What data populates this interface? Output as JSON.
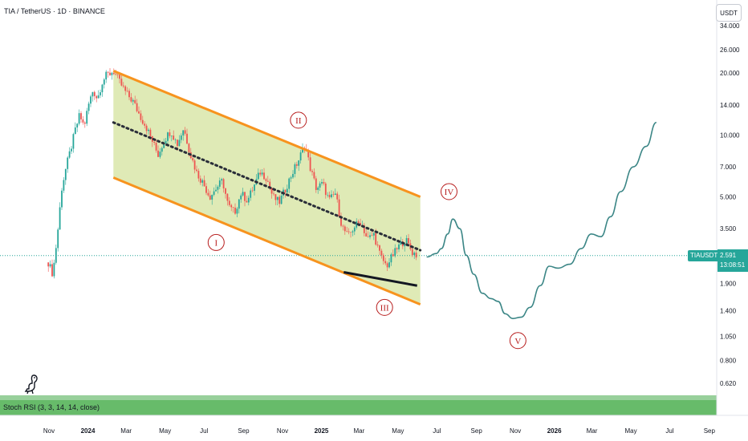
{
  "header": {
    "title": "TIA / TetherUS · 1D · BINANCE",
    "currency_button": "USDT"
  },
  "indicator": {
    "label": "Stoch RSI (3, 3, 14, 14, close)"
  },
  "price_tag": {
    "symbol": "TIAUSDT",
    "price": "2.591",
    "countdown": "13:08:51"
  },
  "colors": {
    "up_candle": "#26a69a",
    "down_candle": "#ef5350",
    "channel": "#f7931e",
    "channel_fill": "#c5d97a",
    "wave_label": "#b71c1c",
    "projection": "#3b8686",
    "indicator_band": "#4caf50"
  },
  "chart_data": {
    "type": "candlestick",
    "y_scale": "log",
    "ylim": [
      0.52,
      40
    ],
    "y_ticks": [
      "34.000",
      "26.000",
      "20.000",
      "14.000",
      "10.000",
      "7.000",
      "5.000",
      "3.500",
      "2.591",
      "1.900",
      "1.400",
      "1.050",
      "0.800",
      "0.620"
    ],
    "y_tick_values": [
      34,
      26,
      20,
      14,
      10,
      7,
      5,
      3.5,
      2.591,
      1.9,
      1.4,
      1.05,
      0.8,
      0.62
    ],
    "x_ticks": [
      "Nov",
      "2024",
      "Mar",
      "May",
      "Jul",
      "Sep",
      "Nov",
      "2025",
      "Mar",
      "May",
      "Jul",
      "Sep",
      "Nov",
      "2026",
      "Mar",
      "May",
      "Jul",
      "Sep"
    ],
    "x_tick_dates": [
      "2023-11-01",
      "2024-01-01",
      "2024-03-01",
      "2024-05-01",
      "2024-07-01",
      "2024-09-01",
      "2024-11-01",
      "2025-01-01",
      "2025-03-01",
      "2025-05-01",
      "2025-07-01",
      "2025-09-01",
      "2025-11-01",
      "2026-01-01",
      "2026-03-01",
      "2026-05-01",
      "2026-07-01",
      "2026-09-01"
    ],
    "price_path": [
      [
        "2023-10-31",
        2.4
      ],
      [
        "2023-11-07",
        2.1
      ],
      [
        "2023-11-14",
        3.2
      ],
      [
        "2023-11-21",
        5.5
      ],
      [
        "2023-11-28",
        7.0
      ],
      [
        "2023-12-05",
        8.5
      ],
      [
        "2023-12-12",
        10.5
      ],
      [
        "2023-12-19",
        12.5
      ],
      [
        "2023-12-26",
        11.0
      ],
      [
        "2024-01-02",
        14.0
      ],
      [
        "2024-01-09",
        16.5
      ],
      [
        "2024-01-16",
        15.0
      ],
      [
        "2024-01-23",
        18.0
      ],
      [
        "2024-01-30",
        19.5
      ],
      [
        "2024-02-06",
        20.0
      ],
      [
        "2024-02-10",
        20.5
      ],
      [
        "2024-02-20",
        18.0
      ],
      [
        "2024-03-01",
        16.0
      ],
      [
        "2024-03-12",
        14.5
      ],
      [
        "2024-03-22",
        12.5
      ],
      [
        "2024-04-01",
        11.0
      ],
      [
        "2024-04-10",
        9.5
      ],
      [
        "2024-04-20",
        8.0
      ],
      [
        "2024-04-30",
        9.5
      ],
      [
        "2024-05-10",
        10.5
      ],
      [
        "2024-05-20",
        9.0
      ],
      [
        "2024-05-30",
        10.8
      ],
      [
        "2024-06-10",
        8.0
      ],
      [
        "2024-06-20",
        6.5
      ],
      [
        "2024-06-30",
        5.8
      ],
      [
        "2024-07-10",
        5.0
      ],
      [
        "2024-07-20",
        5.5
      ],
      [
        "2024-07-30",
        6.0
      ],
      [
        "2024-08-08",
        4.5
      ],
      [
        "2024-08-18",
        4.2
      ],
      [
        "2024-08-28",
        5.2
      ],
      [
        "2024-09-07",
        4.8
      ],
      [
        "2024-09-17",
        5.6
      ],
      [
        "2024-09-27",
        6.6
      ],
      [
        "2024-10-07",
        6.2
      ],
      [
        "2024-10-17",
        5.0
      ],
      [
        "2024-10-27",
        4.7
      ],
      [
        "2024-11-06",
        5.5
      ],
      [
        "2024-11-16",
        6.5
      ],
      [
        "2024-11-26",
        7.5
      ],
      [
        "2024-12-06",
        9.0
      ],
      [
        "2024-12-14",
        7.0
      ],
      [
        "2024-12-24",
        5.5
      ],
      [
        "2025-01-03",
        5.8
      ],
      [
        "2025-01-13",
        4.8
      ],
      [
        "2025-01-23",
        5.2
      ],
      [
        "2025-02-02",
        3.6
      ],
      [
        "2025-02-12",
        3.2
      ],
      [
        "2025-02-22",
        3.6
      ],
      [
        "2025-03-04",
        3.8
      ],
      [
        "2025-03-14",
        3.1
      ],
      [
        "2025-03-24",
        3.3
      ],
      [
        "2025-04-03",
        2.6
      ],
      [
        "2025-04-13",
        2.3
      ],
      [
        "2025-04-23",
        2.6
      ],
      [
        "2025-05-03",
        2.9
      ],
      [
        "2025-05-13",
        3.1
      ],
      [
        "2025-05-23",
        2.7
      ],
      [
        "2025-05-31",
        2.591
      ]
    ],
    "projection_path": [
      [
        "2025-06-15",
        2.55
      ],
      [
        "2025-06-30",
        2.65
      ],
      [
        "2025-07-08",
        2.8
      ],
      [
        "2025-07-18",
        3.3
      ],
      [
        "2025-07-26",
        3.9
      ],
      [
        "2025-08-06",
        3.5
      ],
      [
        "2025-08-16",
        2.6
      ],
      [
        "2025-08-28",
        2.1
      ],
      [
        "2025-09-10",
        1.7
      ],
      [
        "2025-09-24",
        1.6
      ],
      [
        "2025-10-05",
        1.55
      ],
      [
        "2025-10-16",
        1.35
      ],
      [
        "2025-10-28",
        1.28
      ],
      [
        "2025-11-10",
        1.3
      ],
      [
        "2025-11-24",
        1.45
      ],
      [
        "2025-12-10",
        1.85
      ],
      [
        "2025-12-24",
        2.3
      ],
      [
        "2026-01-07",
        2.25
      ],
      [
        "2026-01-25",
        2.35
      ],
      [
        "2026-02-12",
        2.8
      ],
      [
        "2026-02-28",
        3.3
      ],
      [
        "2026-03-15",
        3.2
      ],
      [
        "2026-03-30",
        4.0
      ],
      [
        "2026-04-15",
        5.3
      ],
      [
        "2026-05-05",
        7.0
      ],
      [
        "2026-05-25",
        8.8
      ],
      [
        "2026-06-10",
        11.5
      ]
    ],
    "channel_upper": [
      [
        "2024-02-10",
        20.5
      ],
      [
        "2025-06-05",
        5.0
      ]
    ],
    "channel_lower": [
      [
        "2024-02-10",
        6.2
      ],
      [
        "2025-06-05",
        1.5
      ]
    ],
    "channel_mid": [
      [
        "2024-02-10",
        11.5
      ],
      [
        "2025-06-05",
        2.75
      ]
    ],
    "support_line": [
      [
        "2025-02-05",
        2.15
      ],
      [
        "2025-05-31",
        1.85
      ]
    ],
    "wave_labels": [
      {
        "label": "I",
        "date": "2024-07-20",
        "price": 3.0
      },
      {
        "label": "II",
        "date": "2024-11-26",
        "price": 11.8
      },
      {
        "label": "III",
        "date": "2025-04-10",
        "price": 1.45
      },
      {
        "label": "IV",
        "date": "2025-07-20",
        "price": 5.3
      },
      {
        "label": "V",
        "date": "2025-11-05",
        "price": 1.0
      }
    ]
  }
}
